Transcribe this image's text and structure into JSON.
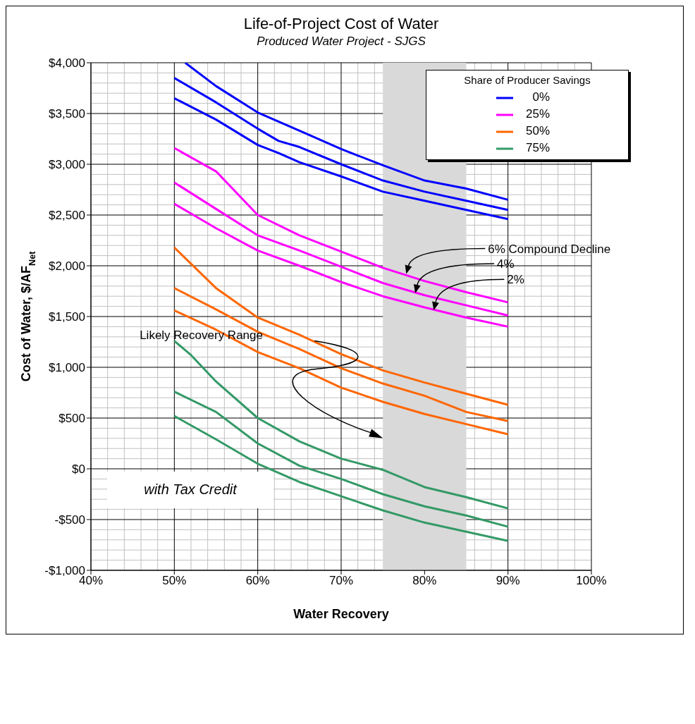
{
  "chart_data": {
    "type": "line",
    "title": "Life-of-Project Cost of Water",
    "subtitle": "Produced Water Project - SJGS",
    "xlabel": "Water Recovery",
    "ylabel": "Cost of Water, $/AF$_{Net}$",
    "legend_title": "Share of Producer Savings",
    "xlim": [
      40,
      100
    ],
    "xticks": [
      {
        "value": 40,
        "label": "40%"
      },
      {
        "value": 50,
        "label": "50%"
      },
      {
        "value": 60,
        "label": "60%"
      },
      {
        "value": 70,
        "label": "70%"
      },
      {
        "value": 80,
        "label": "80%"
      },
      {
        "value": 90,
        "label": "90%"
      },
      {
        "value": 100,
        "label": "100%"
      }
    ],
    "ylim": [
      -1000,
      4000
    ],
    "yticks": [
      {
        "value": -1000,
        "label": "-$1,000"
      },
      {
        "value": -500,
        "label": "-$500"
      },
      {
        "value": 0,
        "label": "$0"
      },
      {
        "value": 500,
        "label": "$500"
      },
      {
        "value": 1000,
        "label": "$1,000"
      },
      {
        "value": 1500,
        "label": "$1,500"
      },
      {
        "value": 2000,
        "label": "$2,000"
      },
      {
        "value": 2500,
        "label": "$2,500"
      },
      {
        "value": 3000,
        "label": "$3,000"
      },
      {
        "value": 3500,
        "label": "$3,500"
      },
      {
        "value": 4000,
        "label": "$4,000"
      }
    ],
    "grid": true,
    "legend": "top right",
    "line_style": "solid",
    "series": [
      {
        "name": "0%",
        "color": "#0000ff",
        "x": [
          51.3,
          55,
          60,
          65,
          70,
          75,
          80,
          85,
          90
        ],
        "values": [
          4000,
          3770,
          3510,
          3330,
          3150,
          2990,
          2840,
          2760,
          2650
        ]
      },
      {
        "color": "#0000ff",
        "x": [
          50,
          55,
          60,
          62.5,
          65,
          70,
          75,
          80,
          85,
          90
        ],
        "values": [
          3850,
          3610,
          3350,
          3230,
          3170,
          3000,
          2840,
          2730,
          2640,
          2550
        ]
      },
      {
        "color": "#0000ff",
        "x": [
          50,
          55,
          60,
          62.5,
          65,
          70,
          75,
          80,
          85,
          90
        ],
        "values": [
          3650,
          3440,
          3190,
          3110,
          3020,
          2880,
          2730,
          2640,
          2550,
          2460
        ]
      },
      {
        "name": "25%",
        "color": "#ff00ff",
        "x": [
          50,
          55,
          60,
          65,
          70,
          75,
          80,
          85,
          90
        ],
        "values": [
          3160,
          2930,
          2500,
          2300,
          2140,
          1980,
          1850,
          1740,
          1640
        ]
      },
      {
        "color": "#ff00ff",
        "x": [
          50,
          55,
          60,
          65,
          70,
          75,
          80,
          85,
          90
        ],
        "values": [
          2820,
          2560,
          2300,
          2150,
          1990,
          1830,
          1710,
          1610,
          1510
        ]
      },
      {
        "color": "#ff00ff",
        "x": [
          50,
          55,
          60,
          65,
          70,
          75,
          80,
          85,
          90
        ],
        "values": [
          2610,
          2370,
          2150,
          2000,
          1840,
          1700,
          1590,
          1490,
          1400
        ]
      },
      {
        "name": "50%",
        "color": "#ff6600",
        "x": [
          50,
          55,
          60,
          65,
          70,
          75,
          80,
          85,
          90
        ],
        "values": [
          2180,
          1780,
          1490,
          1320,
          1130,
          970,
          850,
          740,
          630
        ]
      },
      {
        "color": "#ff6600",
        "x": [
          50,
          55,
          60,
          65,
          70,
          75,
          80,
          85,
          90
        ],
        "values": [
          1780,
          1570,
          1350,
          1180,
          990,
          840,
          720,
          560,
          470
        ]
      },
      {
        "color": "#ff6600",
        "x": [
          50,
          55,
          60,
          65,
          70,
          75,
          80,
          85,
          90
        ],
        "values": [
          1560,
          1370,
          1150,
          990,
          800,
          660,
          540,
          440,
          340
        ]
      },
      {
        "name": "75%",
        "color": "#339966",
        "x": [
          50,
          52,
          55,
          60,
          65,
          70,
          75,
          80,
          85,
          90
        ],
        "values": [
          1260,
          1120,
          860,
          500,
          270,
          100,
          -10,
          -180,
          -280,
          -390
        ]
      },
      {
        "color": "#339966",
        "x": [
          50,
          55,
          60,
          65,
          70,
          75,
          80,
          85,
          90
        ],
        "values": [
          760,
          560,
          250,
          30,
          -100,
          -250,
          -370,
          -460,
          -570
        ]
      },
      {
        "color": "#339966",
        "x": [
          50,
          55,
          60,
          65,
          70,
          75,
          80,
          85,
          90
        ],
        "values": [
          520,
          290,
          50,
          -130,
          -270,
          -410,
          -530,
          -620,
          -710
        ]
      }
    ],
    "bands": [
      {
        "axis": "x",
        "from": 75,
        "to": 85,
        "color": "#d9d9d9"
      }
    ],
    "annotations": [
      "6% Compound Decline",
      "4%",
      "2%",
      "Likely Recovery Range",
      "with Tax Credit"
    ]
  }
}
